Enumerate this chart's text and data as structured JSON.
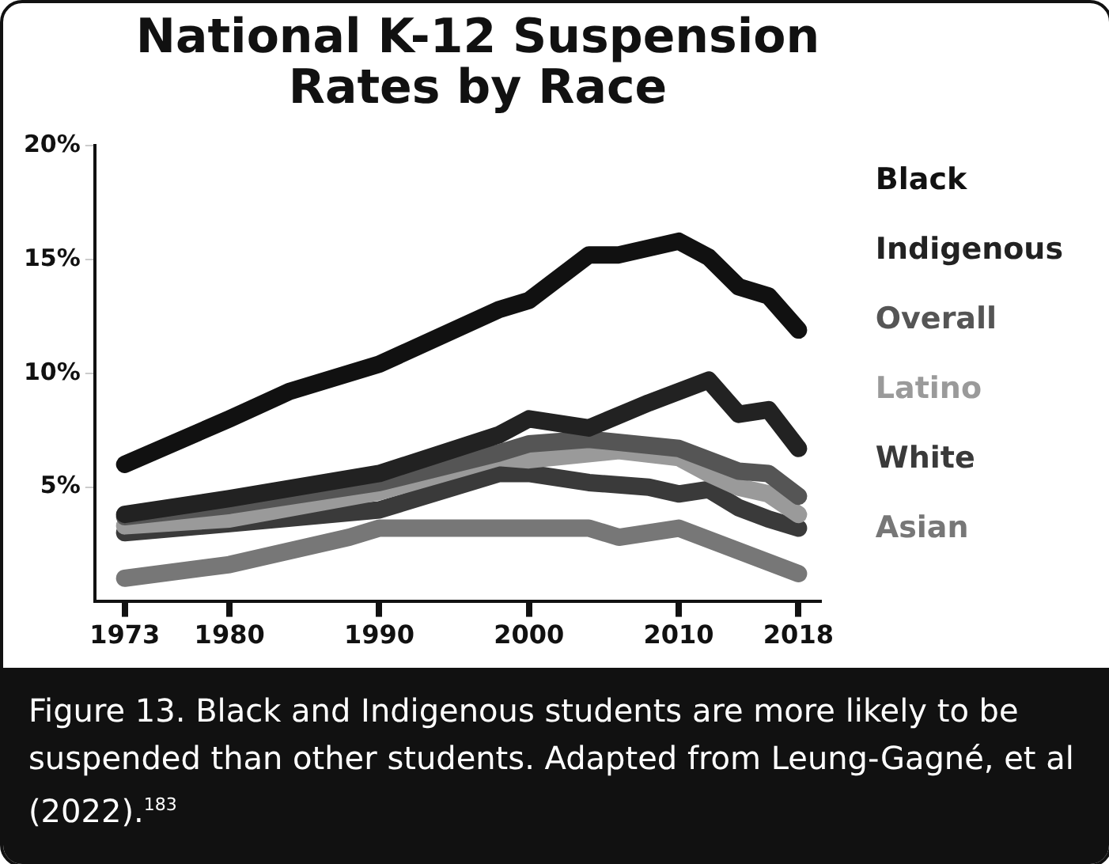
{
  "chart_data": {
    "type": "line",
    "title": "National K-12 Suspension Rates by Race",
    "annotations": [
      "Figure 13. Black and Indigenous students are more likely to be suspended than other students. Adapted from Leung-Gagné, et al (2022).$^{183}$"
    ],
    "xlim": [
      1971,
      2019.5
    ],
    "xticks": [
      1973,
      1980,
      1990,
      2000,
      2010,
      2018
    ],
    "ylim": [
      0,
      20
    ],
    "yticks": [
      {
        "value": 5,
        "label": "5%"
      },
      {
        "value": 10,
        "label": "10%"
      },
      {
        "value": 15,
        "label": "15%"
      },
      {
        "value": 20,
        "label": "20%"
      }
    ],
    "grid": false,
    "legend": "right",
    "marker": "none",
    "line_style": "solid",
    "series": [
      {
        "name": "Black",
        "color": "#111111",
        "x": [
          1973,
          1980,
          1984,
          1990,
          1998,
          2000,
          2004,
          2006,
          2010,
          2012,
          2014,
          2016,
          2018
        ],
        "values": [
          6.0,
          8.0,
          9.2,
          10.4,
          12.8,
          13.2,
          15.2,
          15.2,
          15.8,
          15.1,
          13.8,
          13.4,
          11.9
        ]
      },
      {
        "name": "Indigenous",
        "color": "#222222",
        "x": [
          1973,
          1980,
          1990,
          1998,
          2000,
          2004,
          2008,
          2012,
          2014,
          2016,
          2018
        ],
        "values": [
          3.8,
          4.5,
          5.6,
          7.3,
          8.0,
          7.6,
          8.7,
          9.7,
          8.2,
          8.4,
          6.7
        ]
      },
      {
        "name": "Overall",
        "color": "#555555",
        "x": [
          1973,
          1980,
          1990,
          1998,
          2000,
          2004,
          2010,
          2014,
          2016,
          2018
        ],
        "values": [
          3.7,
          4.2,
          5.2,
          6.5,
          6.9,
          7.1,
          6.7,
          5.7,
          5.6,
          4.6
        ]
      },
      {
        "name": "Latino",
        "color": "#9a9a9a",
        "x": [
          1973,
          1980,
          1990,
          1998,
          2000,
          2006,
          2010,
          2012,
          2014,
          2016,
          2018
        ],
        "values": [
          3.3,
          3.6,
          4.8,
          6.3,
          6.2,
          6.6,
          6.3,
          5.6,
          5.0,
          4.7,
          3.8
        ]
      },
      {
        "name": "White",
        "color": "#3a3a3a",
        "x": [
          1973,
          1980,
          1990,
          1998,
          2000,
          2004,
          2008,
          2010,
          2012,
          2014,
          2016,
          2018
        ],
        "values": [
          3.0,
          3.4,
          4.0,
          5.6,
          5.6,
          5.2,
          5.0,
          4.7,
          4.9,
          4.1,
          3.6,
          3.2
        ]
      },
      {
        "name": "Asian",
        "color": "#777777",
        "x": [
          1973,
          1980,
          1988,
          1990,
          2000,
          2004,
          2006,
          2010,
          2014,
          2018
        ],
        "values": [
          1.0,
          1.6,
          2.8,
          3.2,
          3.2,
          3.2,
          2.8,
          3.2,
          2.2,
          1.2
        ]
      }
    ]
  }
}
